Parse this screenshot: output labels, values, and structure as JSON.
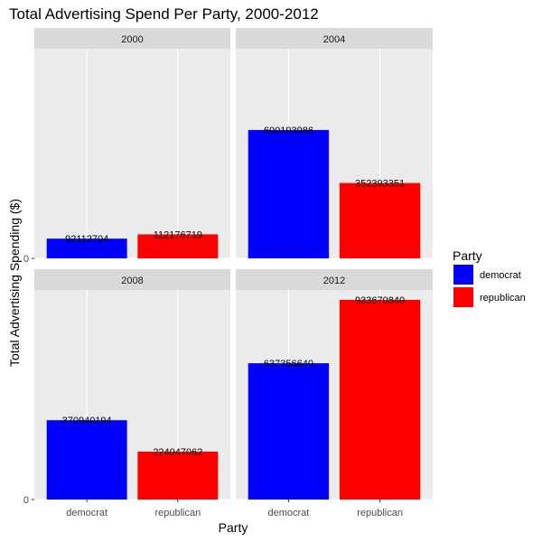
{
  "chart_data": {
    "type": "bar",
    "title": "Total Advertising Spend Per Party, 2000-2012",
    "xlabel": "Party",
    "ylabel": "Total Advertising Spending ($)",
    "categories": [
      "democrat",
      "republican"
    ],
    "y_tick_labels": [
      "0"
    ],
    "ylim": [
      0,
      980000000
    ],
    "grid": true,
    "legend": {
      "title": "Party",
      "position": "right",
      "entries": [
        {
          "name": "democrat",
          "color": "#0000FF"
        },
        {
          "name": "republican",
          "color": "#FF0000"
        }
      ]
    },
    "panels": [
      {
        "label": "2000",
        "values": [
          92112704,
          112176719
        ],
        "value_labels": [
          "92112704",
          "112176719"
        ]
      },
      {
        "label": "2004",
        "values": [
          600193986,
          352393351
        ],
        "value_labels": [
          "600193986",
          "352393351"
        ]
      },
      {
        "label": "2008",
        "values": [
          370940194,
          224047062
        ],
        "value_labels": [
          "370940194",
          "224047062"
        ]
      },
      {
        "label": "2012",
        "values": [
          637356640,
          933670840
        ],
        "value_labels": [
          "637356640",
          "933670840"
        ]
      }
    ]
  }
}
